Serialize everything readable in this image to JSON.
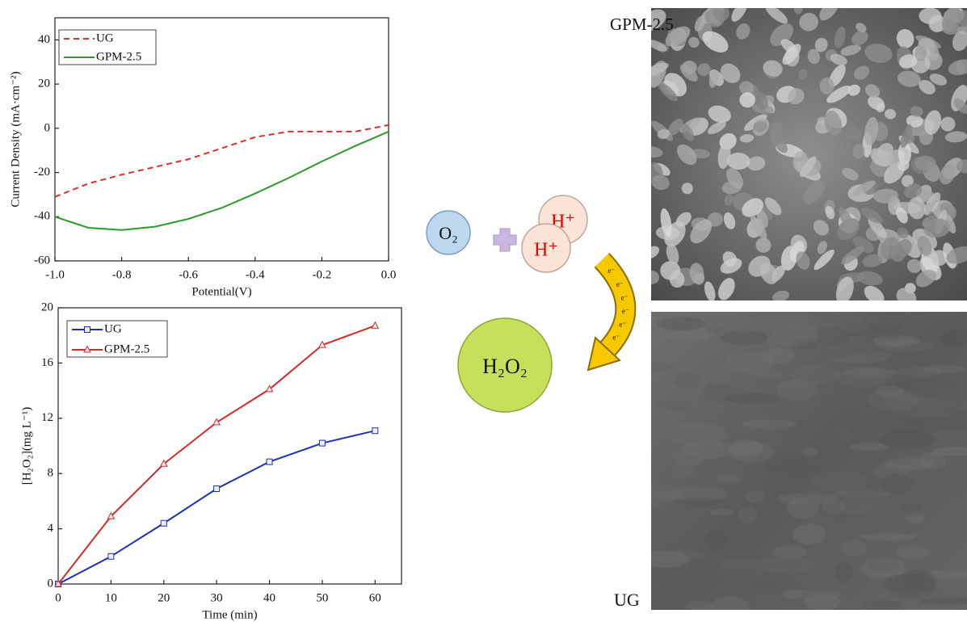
{
  "chart_data": [
    {
      "type": "line",
      "x_label": "Potential(V)",
      "y_label": "Current Density (mA·cm⁻²)",
      "x": [
        -1.0,
        -0.9,
        -0.8,
        -0.7,
        -0.6,
        -0.5,
        -0.4,
        -0.3,
        -0.2,
        -0.1,
        0.0
      ],
      "series": [
        {
          "name": "UG",
          "color": "#d9302c",
          "line_style": "dashed",
          "values": [
            -31,
            -25,
            -21,
            -17.5,
            -14,
            -9,
            -4,
            -1.5,
            -1.5,
            -1.5,
            1.5
          ]
        },
        {
          "name": "GPM-2.5",
          "color": "#2e9a2e",
          "line_style": "solid",
          "values": [
            -40,
            -45,
            -46,
            -44.5,
            -41,
            -36,
            -29.5,
            -22.5,
            -15,
            -8,
            -1.5
          ]
        }
      ],
      "xlim": [
        -1.0,
        0.0
      ],
      "xticks": [
        {
          "value": -1.0,
          "label": "-1.0"
        },
        -0.8,
        -0.6,
        -0.4,
        -0.2,
        {
          "value": 0.0,
          "label": "0.0"
        }
      ],
      "ylim": [
        -60,
        50
      ],
      "yticks": [
        -60,
        -40,
        -20,
        0,
        20,
        40
      ],
      "legend": "upper left"
    },
    {
      "type": "line",
      "x_label": "Time (min)",
      "y_label": "[H₂O₂](mg L⁻¹)",
      "x": [
        0,
        10,
        20,
        30,
        40,
        50,
        60
      ],
      "series": [
        {
          "name": "UG",
          "color": "#1f2fb5",
          "line_style": "solid",
          "marker": "square",
          "values": [
            0,
            2.0,
            4.4,
            6.9,
            8.85,
            10.2,
            11.1
          ]
        },
        {
          "name": "GPM-2.5",
          "color": "#d42a2a",
          "line_style": "solid",
          "marker": "triangle",
          "values": [
            0,
            4.9,
            8.7,
            11.7,
            14.1,
            17.3,
            18.7
          ]
        }
      ],
      "xlim": [
        0,
        65
      ],
      "xticks": [
        0,
        10,
        20,
        30,
        40,
        50,
        60
      ],
      "ylim": [
        0,
        20
      ],
      "yticks": [
        0,
        4,
        8,
        12,
        16,
        20
      ],
      "legend": "upper left"
    }
  ],
  "diagram": {
    "o2": "O₂",
    "h_plus": [
      "H⁺",
      "H⁺"
    ],
    "h2o2": "H₂O₂",
    "electrons": [
      "e⁻",
      "e⁻",
      "e⁻",
      "e⁻",
      "e⁻",
      "e⁻"
    ]
  },
  "images": {
    "top_label": "GPM-2.5",
    "bottom_label": "UG"
  }
}
